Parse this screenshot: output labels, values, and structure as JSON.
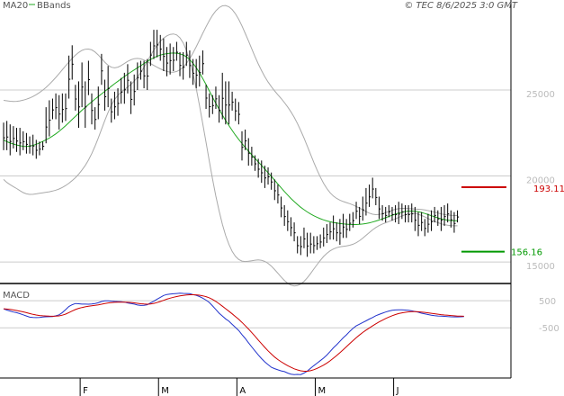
{
  "header": {
    "ma_label": "MA20",
    "bbands_label": "BBands",
    "credit": "© TEC 8/6/2025 3:0 GMT"
  },
  "colors": {
    "price_bar": "#000000",
    "ma": "#22aa22",
    "bbands": "#aaaaaa",
    "resistance": "#cc0000",
    "support": "#009900",
    "macd": "#2233cc",
    "signal": "#cc0000",
    "grid": "#cccccc",
    "frame": "#000000"
  },
  "chart_data": {
    "type": "ohlc",
    "price_axis": {
      "ticks": [
        15000,
        20000,
        25000
      ],
      "tick_labels": [
        "15000",
        "20000",
        "25000"
      ],
      "range": [
        13800,
        29500
      ],
      "grid": true
    },
    "x_axis": {
      "months": [
        "F",
        "M",
        "A",
        "M",
        "J"
      ],
      "month_start_index": [
        24,
        48,
        72,
        96,
        120
      ]
    },
    "levels": {
      "resistance": 193.11,
      "resistance_label": "193.11",
      "support": 156.16,
      "support_label": "156.16",
      "resistance_plot": 19350,
      "support_plot": 15600
    },
    "highs": [
      23100,
      23200,
      23000,
      22900,
      22800,
      22800,
      22600,
      22500,
      22300,
      22400,
      22100,
      22000,
      22000,
      24000,
      24400,
      24500,
      24800,
      24700,
      24800,
      24800,
      27000,
      27600,
      25300,
      25500,
      26600,
      25500,
      26700,
      24800,
      24000,
      25200,
      27100,
      25600,
      26400,
      24500,
      24900,
      25100,
      25700,
      26000,
      26500,
      25500,
      25900,
      26600,
      26700,
      26700,
      26800,
      27800,
      28500,
      28500,
      28200,
      28000,
      27500,
      27700,
      27500,
      27800,
      27200,
      27200,
      27800,
      27300,
      26800,
      26800,
      27000,
      27300,
      25300,
      24800,
      24700,
      25200,
      24700,
      26000,
      25500,
      25500,
      24900,
      24500,
      24300,
      22600,
      22700,
      22200,
      21700,
      21200,
      21000,
      20900,
      20600,
      20500,
      20200,
      19800,
      19500,
      18800,
      18300,
      18000,
      17600,
      17300,
      16500,
      16500,
      17000,
      16700,
      16700,
      16500,
      16500,
      16600,
      17000,
      17200,
      17300,
      17700,
      17300,
      17500,
      17800,
      17500,
      17800,
      17900,
      18500,
      18200,
      18800,
      19300,
      19500,
      19900,
      19300,
      18800,
      18300,
      18200,
      18300,
      18200,
      18300,
      18500,
      18400,
      18300,
      18300,
      18400,
      18200,
      17900,
      17900,
      17500,
      17800,
      18000,
      18200,
      18000,
      18200,
      18300,
      18400,
      18000,
      17900,
      18000
    ],
    "lows": [
      21500,
      21500,
      21200,
      21600,
      21400,
      21200,
      21500,
      21300,
      21300,
      21200,
      21000,
      21200,
      21500,
      21900,
      22300,
      23300,
      23300,
      22700,
      23100,
      23200,
      24500,
      25600,
      23800,
      22800,
      24000,
      22800,
      24700,
      23000,
      22700,
      23300,
      25300,
      23800,
      24000,
      23100,
      23300,
      23500,
      24200,
      24200,
      24800,
      23600,
      24100,
      25000,
      25600,
      25100,
      25000,
      26400,
      26800,
      26900,
      26700,
      26100,
      25800,
      25900,
      26100,
      26700,
      25800,
      25600,
      26400,
      25700,
      25300,
      25100,
      25200,
      25900,
      23900,
      23400,
      23600,
      23900,
      23100,
      23300,
      23000,
      23000,
      23800,
      23200,
      23000,
      20900,
      21500,
      20600,
      20600,
      20300,
      19900,
      19600,
      19300,
      19500,
      19200,
      18600,
      18400,
      17600,
      17100,
      16800,
      16500,
      16200,
      15500,
      15400,
      15800,
      15300,
      15500,
      15500,
      15700,
      15800,
      15900,
      16100,
      16300,
      16300,
      16200,
      16000,
      16400,
      16400,
      16800,
      17000,
      17500,
      17200,
      17400,
      17700,
      18200,
      18700,
      18300,
      17500,
      17400,
      17300,
      17600,
      17400,
      17300,
      17200,
      17500,
      17300,
      17300,
      17300,
      16800,
      16500,
      16800,
      16500,
      16700,
      16800,
      17300,
      17100,
      16800,
      17100,
      17300,
      17000,
      16700,
      17300
    ],
    "ma20": [
      22100,
      21998,
      21919,
      21857,
      21804,
      21758,
      21721,
      21711,
      21732,
      21779,
      21845,
      21923,
      22009,
      22103,
      22206,
      22322,
      22452,
      22597,
      22756,
      22926,
      23103,
      23283,
      23465,
      23645,
      23823,
      23993,
      24157,
      24316,
      24469,
      24621,
      24771,
      24920,
      25070,
      25219,
      25366,
      25509,
      25648,
      25784,
      25916,
      26044,
      26168,
      26291,
      26413,
      26536,
      26657,
      26772,
      26875,
      26961,
      27029,
      27079,
      27115,
      27138,
      27148,
      27139,
      27104,
      27034,
      26923,
      26764,
      26555,
      26298,
      25999,
      25667,
      25313,
      24948,
      24582,
      24224,
      23878,
      23546,
      23230,
      22930,
      22647,
      22380,
      22128,
      21889,
      21661,
      21442,
      21230,
      21023,
      20818,
      20612,
      20404,
      20192,
      19975,
      19755,
      19533,
      19313,
      19097,
      18890,
      18693,
      18508,
      18337,
      18180,
      18038,
      17909,
      17793,
      17689,
      17597,
      17516,
      17446,
      17386,
      17336,
      17295,
      17262,
      17235,
      17212,
      17194,
      17181,
      17174,
      17175,
      17185,
      17205,
      17235,
      17274,
      17322,
      17378,
      17439,
      17505,
      17574,
      17645,
      17716,
      17783,
      17844,
      17895,
      17933,
      17955,
      17960,
      17948,
      17919,
      17876,
      17820,
      17757,
      17690,
      17624,
      17563,
      17509,
      17464,
      17431,
      17410,
      17400,
      17400
    ],
    "bb_upper": [
      24400,
      24371,
      24345,
      24335,
      24341,
      24366,
      24407,
      24463,
      24535,
      24623,
      24729,
      24852,
      24993,
      25151,
      25328,
      25521,
      25730,
      25950,
      26177,
      26406,
      26629,
      26838,
      27026,
      27183,
      27301,
      27371,
      27383,
      27331,
      27212,
      27034,
      26825,
      26615,
      26439,
      26325,
      26289,
      26328,
      26421,
      26540,
      26661,
      26760,
      26822,
      26838,
      26810,
      26743,
      26649,
      26540,
      26429,
      26324,
      26229,
      26146,
      26080,
      26040,
      26036,
      26078,
      26174,
      26330,
      26547,
      26823,
      27150,
      27515,
      27903,
      28297,
      28679,
      29034,
      29346,
      29601,
      29787,
      29893,
      29913,
      29841,
      29679,
      29432,
      29110,
      28726,
      28298,
      27846,
      27389,
      26941,
      26517,
      26127,
      25776,
      25466,
      25193,
      24949,
      24722,
      24500,
      24268,
      24016,
      23733,
      23411,
      23048,
      22644,
      22205,
      21741,
      21266,
      20796,
      20348,
      19938,
      19576,
      19271,
      19025,
      18835,
      18694,
      18592,
      18516,
      18454,
      18391,
      18317,
      18230,
      18131,
      18026,
      17924,
      17838,
      17778,
      17753,
      17764,
      17804,
      17866,
      17938,
      18007,
      18063,
      18099,
      18115,
      18115,
      18104,
      18090,
      18077,
      18064,
      18047,
      18022,
      17988,
      17945,
      17895,
      17843,
      17796,
      17756,
      17727,
      17709,
      17700,
      17700
    ],
    "bb_lower": [
      19800,
      19626,
      19493,
      19380,
      19267,
      19150,
      19035,
      18959,
      18929,
      18935,
      18961,
      18994,
      19025,
      19055,
      19083,
      19123,
      19174,
      19244,
      19334,
      19446,
      19577,
      19728,
      19904,
      20107,
      20345,
      20615,
      20931,
      21301,
      21726,
      22208,
      22718,
      23224,
      23701,
      24113,
      24443,
      24690,
      24875,
      25027,
      25171,
      25328,
      25514,
      25744,
      26016,
      26329,
      26665,
      27003,
      27321,
      27598,
      27829,
      28012,
      28150,
      28236,
      28260,
      28200,
      28034,
      27738,
      27300,
      26705,
      25960,
      25081,
      24096,
      23037,
      21946,
      20862,
      19819,
      18847,
      17968,
      17199,
      16547,
      16019,
      15615,
      15328,
      15147,
      15052,
      15024,
      15039,
      15071,
      15104,
      15119,
      15097,
      15032,
      14919,
      14758,
      14561,
      14344,
      14127,
      13926,
      13764,
      13653,
      13605,
      13626,
      13716,
      13871,
      14077,
      14320,
      14583,
      14846,
      15094,
      15316,
      15501,
      15647,
      15754,
      15830,
      15879,
      15908,
      15934,
      15970,
      16031,
      16120,
      16239,
      16384,
      16546,
      16710,
      16866,
      17003,
      17114,
      17206,
      17282,
      17352,
      17425,
      17503,
      17590,
      17675,
      17750,
      17806,
      17830,
      17819,
      17774,
      17705,
      17618,
      17525,
      17435,
      17353,
      17283,
      17222,
      17171,
      17135,
      17111,
      17100,
      17100
    ],
    "macd_axis": {
      "ticks": [
        500,
        -500
      ],
      "tick_labels": [
        "500",
        "-500"
      ],
      "range": [
        -2350,
        1100
      ]
    },
    "macd": [
      200,
      156,
      118,
      83,
      57,
      22,
      -20,
      -63,
      -108,
      -119,
      -124,
      -119,
      -104,
      -93,
      -90,
      -84,
      -58,
      -22,
      61,
      171,
      286,
      350,
      396,
      388,
      375,
      373,
      370,
      378,
      396,
      424,
      471,
      496,
      496,
      484,
      472,
      466,
      461,
      447,
      418,
      397,
      374,
      339,
      323,
      328,
      347,
      417,
      481,
      555,
      621,
      692,
      728,
      743,
      754,
      764,
      774,
      769,
      764,
      758,
      724,
      694,
      651,
      593,
      521,
      433,
      308,
      178,
      40,
      -64,
      -169,
      -256,
      -374,
      -481,
      -598,
      -751,
      -889,
      -1052,
      -1205,
      -1353,
      -1498,
      -1638,
      -1755,
      -1856,
      -1954,
      -2005,
      -2049,
      -2087,
      -2113,
      -2167,
      -2208,
      -2224,
      -2217,
      -2224,
      -2167,
      -2096,
      -1996,
      -1897,
      -1803,
      -1711,
      -1618,
      -1503,
      -1376,
      -1240,
      -1124,
      -997,
      -869,
      -760,
      -632,
      -523,
      -430,
      -366,
      -303,
      -244,
      -178,
      -120,
      -54,
      -8,
      40,
      83,
      118,
      143,
      158,
      166,
      166,
      155,
      144,
      125,
      103,
      75,
      40,
      13,
      -10,
      -36,
      -51,
      -66,
      -71,
      -78,
      -86,
      -93,
      -98,
      -98,
      -93,
      -83
    ]
  }
}
